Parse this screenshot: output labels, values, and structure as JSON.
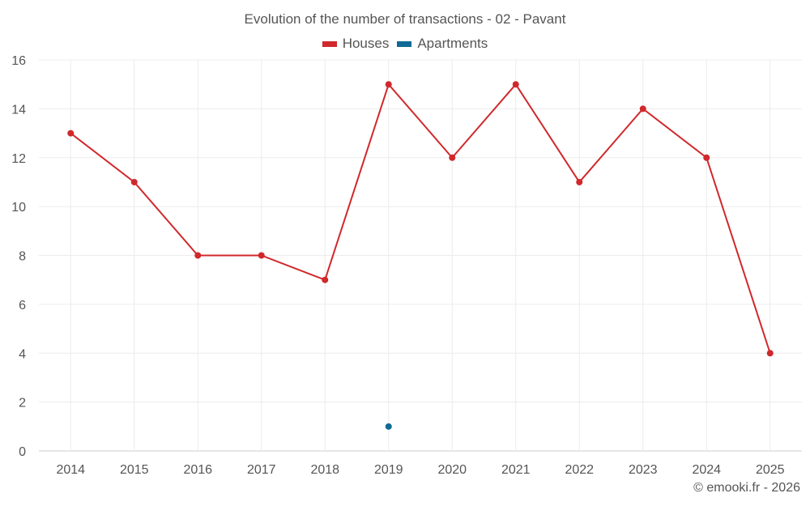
{
  "chart_data": {
    "type": "line",
    "title": "Evolution of the number of transactions - 02 - Pavant",
    "categories": [
      "2014",
      "2015",
      "2016",
      "2017",
      "2018",
      "2019",
      "2020",
      "2021",
      "2022",
      "2023",
      "2024",
      "2025"
    ],
    "ylim": [
      0,
      16
    ],
    "yticks": [
      0,
      2,
      4,
      6,
      8,
      10,
      12,
      14,
      16
    ],
    "grid": true,
    "legend_position": "top-center",
    "series": [
      {
        "name": "Houses",
        "color": "#d0282b",
        "values": [
          13,
          11,
          8,
          8,
          7,
          15,
          12,
          15,
          11,
          14,
          12,
          4
        ]
      },
      {
        "name": "Apartments",
        "color": "#0f6a96",
        "values": [
          null,
          null,
          null,
          null,
          null,
          1,
          null,
          null,
          null,
          null,
          null,
          null
        ]
      }
    ]
  },
  "credit": "© emooki.fr - 2026"
}
